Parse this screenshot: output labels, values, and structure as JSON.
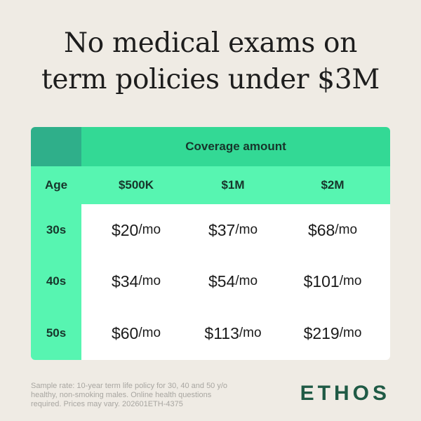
{
  "headline": {
    "line1": "No medical exams on",
    "line2": "term policies under $3M"
  },
  "table": {
    "group_header": "Coverage amount",
    "age_header": "Age",
    "columns": [
      "$500K",
      "$1M",
      "$2M"
    ],
    "rows": [
      {
        "age": "30s",
        "prices": [
          "$20",
          "$37",
          "$68"
        ]
      },
      {
        "age": "40s",
        "prices": [
          "$34",
          "$54",
          "$101"
        ]
      },
      {
        "age": "50s",
        "prices": [
          "$60",
          "$113",
          "$219"
        ]
      }
    ],
    "unit": "/mo"
  },
  "disclaimer": "Sample rate: 10-year term life policy for 30, 40 and 50 y/o healthy, non-smoking males. Online health questions required. Prices may vary. 202601ETH-4375",
  "logo_text": "ETHOS",
  "colors": {
    "background": "#efebe4",
    "header_dark_green": "#33d995",
    "header_light_green": "#57f5b1",
    "corner_green": "#2faf8a",
    "logo_green": "#1f5a45"
  }
}
